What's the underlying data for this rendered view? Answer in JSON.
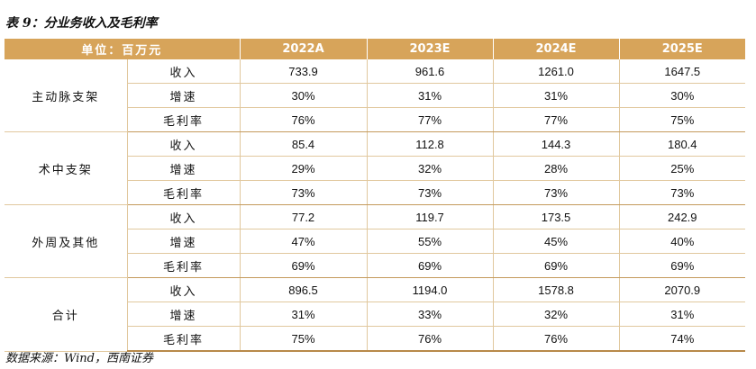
{
  "title": "表 9：分业务收入及毛利率",
  "header": {
    "unit_label": "单位：百万元",
    "years": [
      "2022A",
      "2023E",
      "2024E",
      "2025E"
    ]
  },
  "segments": [
    {
      "name": "主动脉支架",
      "rows": [
        {
          "metric": "收入",
          "values": [
            "733.9",
            "961.6",
            "1261.0",
            "1647.5"
          ]
        },
        {
          "metric": "增速",
          "values": [
            "30%",
            "31%",
            "31%",
            "30%"
          ]
        },
        {
          "metric": "毛利率",
          "values": [
            "76%",
            "77%",
            "77%",
            "75%"
          ]
        }
      ]
    },
    {
      "name": "术中支架",
      "rows": [
        {
          "metric": "收入",
          "values": [
            "85.4",
            "112.8",
            "144.3",
            "180.4"
          ]
        },
        {
          "metric": "增速",
          "values": [
            "29%",
            "32%",
            "28%",
            "25%"
          ]
        },
        {
          "metric": "毛利率",
          "values": [
            "73%",
            "73%",
            "73%",
            "73%"
          ]
        }
      ]
    },
    {
      "name": "外周及其他",
      "rows": [
        {
          "metric": "收入",
          "values": [
            "77.2",
            "119.7",
            "173.5",
            "242.9"
          ]
        },
        {
          "metric": "增速",
          "values": [
            "47%",
            "55%",
            "45%",
            "40%"
          ]
        },
        {
          "metric": "毛利率",
          "values": [
            "69%",
            "69%",
            "69%",
            "69%"
          ]
        }
      ]
    },
    {
      "name": "合计",
      "rows": [
        {
          "metric": "收入",
          "values": [
            "896.5",
            "1194.0",
            "1578.8",
            "2070.9"
          ]
        },
        {
          "metric": "增速",
          "values": [
            "31%",
            "33%",
            "32%",
            "31%"
          ]
        },
        {
          "metric": "毛利率",
          "values": [
            "75%",
            "76%",
            "76%",
            "74%"
          ]
        }
      ]
    }
  ],
  "source": "数据来源：Wind，西南证券",
  "colors": {
    "header_bg": "#d7a45a",
    "header_text": "#ffffff",
    "rule": "#e1c89e"
  }
}
